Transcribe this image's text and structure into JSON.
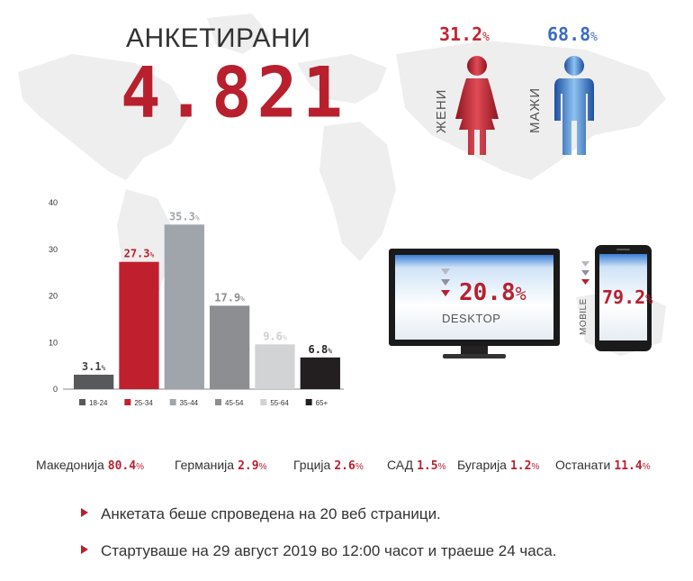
{
  "header": {
    "total_label": "АНКЕТИРАНИ",
    "total_value": "4.821"
  },
  "gender": {
    "female": {
      "value": "31.2",
      "unit": "%",
      "label": "ЖЕНИ",
      "icon": "female-figure-icon",
      "color": "#c32532"
    },
    "male": {
      "value": "68.8",
      "unit": "%",
      "label": "МАЖИ",
      "icon": "male-figure-icon",
      "color": "#3b6cc0"
    }
  },
  "devices": {
    "desktop": {
      "value": "20.8",
      "unit": "%",
      "label": "DESKTOP",
      "icon": "desktop-monitor-icon"
    },
    "mobile": {
      "value": "79.2",
      "unit": "%",
      "label": "MOBILE",
      "icon": "mobile-phone-icon"
    }
  },
  "chart_data": {
    "type": "bar",
    "title": "",
    "xlabel": "",
    "ylabel": "",
    "ylim": [
      0,
      40
    ],
    "yticks": [
      0,
      10,
      20,
      30,
      40
    ],
    "grid": false,
    "legend": "bottom",
    "categories": [
      "18-24",
      "25-34",
      "35-44",
      "45-54",
      "55-64",
      "65+"
    ],
    "values": [
      3.1,
      27.3,
      35.3,
      17.9,
      9.6,
      6.8
    ],
    "value_unit": "%",
    "colors": [
      "#58595b",
      "#c0202e",
      "#9fa5ab",
      "#8c8e91",
      "#d2d3d5",
      "#231f20"
    ],
    "label_colors": [
      "#444444",
      "#b8202e",
      "#9fa5ab",
      "#8c8e91",
      "#cfd0d2",
      "#231f20"
    ]
  },
  "countries": [
    {
      "name": "Македонија",
      "value": "80.4",
      "unit": "%"
    },
    {
      "name": "Германија",
      "value": "2.9",
      "unit": "%"
    },
    {
      "name": "Грција",
      "value": "2.6",
      "unit": "%"
    },
    {
      "name": "САД",
      "value": "1.5",
      "unit": "%"
    },
    {
      "name": "Бугарија",
      "value": "1.2",
      "unit": "%"
    },
    {
      "name": "Останати",
      "value": "11.4",
      "unit": "%"
    }
  ],
  "notes": [
    "Анкетата беше спроведена на 20 веб страници.",
    "Стартуваше на 29 август 2019 во 12:00 часот и траеше 24 часа."
  ]
}
